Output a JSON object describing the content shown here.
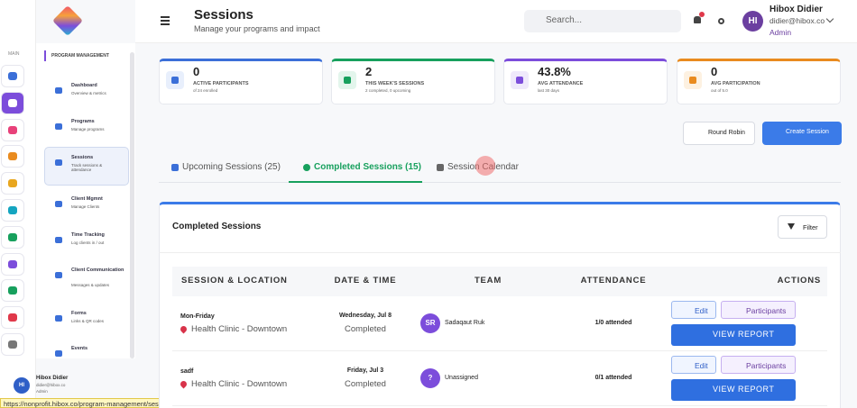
{
  "sidebar": {
    "rail_label": "MAIN",
    "section": "PROGRAM MANAGEMENT",
    "items": [
      {
        "title": "Dashboard",
        "subtitle": "Overview & metrics"
      },
      {
        "title": "Programs",
        "subtitle": "Manage programs"
      },
      {
        "title": "Sessions",
        "subtitle": "Track sessions & attendance"
      },
      {
        "title": "Client Mgmnt",
        "subtitle": "Manage Clients"
      },
      {
        "title": "Time Tracking",
        "subtitle": "Log clients in / out"
      },
      {
        "title": "Client Communication",
        "subtitle": "Messages & updates"
      },
      {
        "title": "Forms",
        "subtitle": "Links & QR codes"
      },
      {
        "title": "Events"
      }
    ],
    "user": {
      "initials": "HI",
      "name": "Hibox Didier",
      "email": "didier@hibox.co",
      "role": "Admin"
    }
  },
  "header": {
    "title": "Sessions",
    "subtitle": "Manage your programs and impact",
    "search_placeholder": "Search...",
    "user": {
      "initials": "HI",
      "name": "Hibox Didier",
      "email": "didier@hibox.co",
      "role": "Admin"
    }
  },
  "stats": [
    {
      "value": "0",
      "label": "ACTIVE PARTICIPANTS",
      "note": "of 24 enrolled"
    },
    {
      "value": "2",
      "label": "THIS WEEK'S SESSIONS",
      "note": "2 completed, 0 upcoming"
    },
    {
      "value": "43.8%",
      "label": "AVG ATTENDANCE",
      "note": "last 30 days"
    },
    {
      "value": "0",
      "label": "AVG PARTICIPATION",
      "note": "out of 5.0"
    }
  ],
  "buttons": [
    "Round Robin",
    "Create Session"
  ],
  "tabs": [
    "Upcoming Sessions (25)",
    "Completed Sessions (15)",
    "Session Calendar"
  ],
  "panel": {
    "title": "Completed Sessions",
    "filter": "Filter",
    "columns": [
      "SESSION & LOCATION",
      "DATE & TIME",
      "TEAM",
      "ATTENDANCE",
      "ACTIONS"
    ],
    "rows": [
      {
        "name": "Mon-Friday",
        "location": "Health Clinic - Downtown",
        "date": "Wednesday, Jul 8",
        "status": "Completed",
        "team_initials": "SR",
        "team": "Sadaqaut Ruk",
        "attendance": "1/0 attended"
      },
      {
        "name": "sadf",
        "location": "Health Clinic - Downtown",
        "date": "Friday, Jul 3",
        "status": "Completed",
        "team_initials": "?",
        "team": "Unassigned",
        "attendance": "0/1 attended"
      }
    ],
    "actions": {
      "edit": "Edit",
      "participants": "Participants",
      "report": "VIEW REPORT"
    }
  },
  "status_bar": "https://nonprofit.hibox.co/program-management/sessions?view=calendar"
}
